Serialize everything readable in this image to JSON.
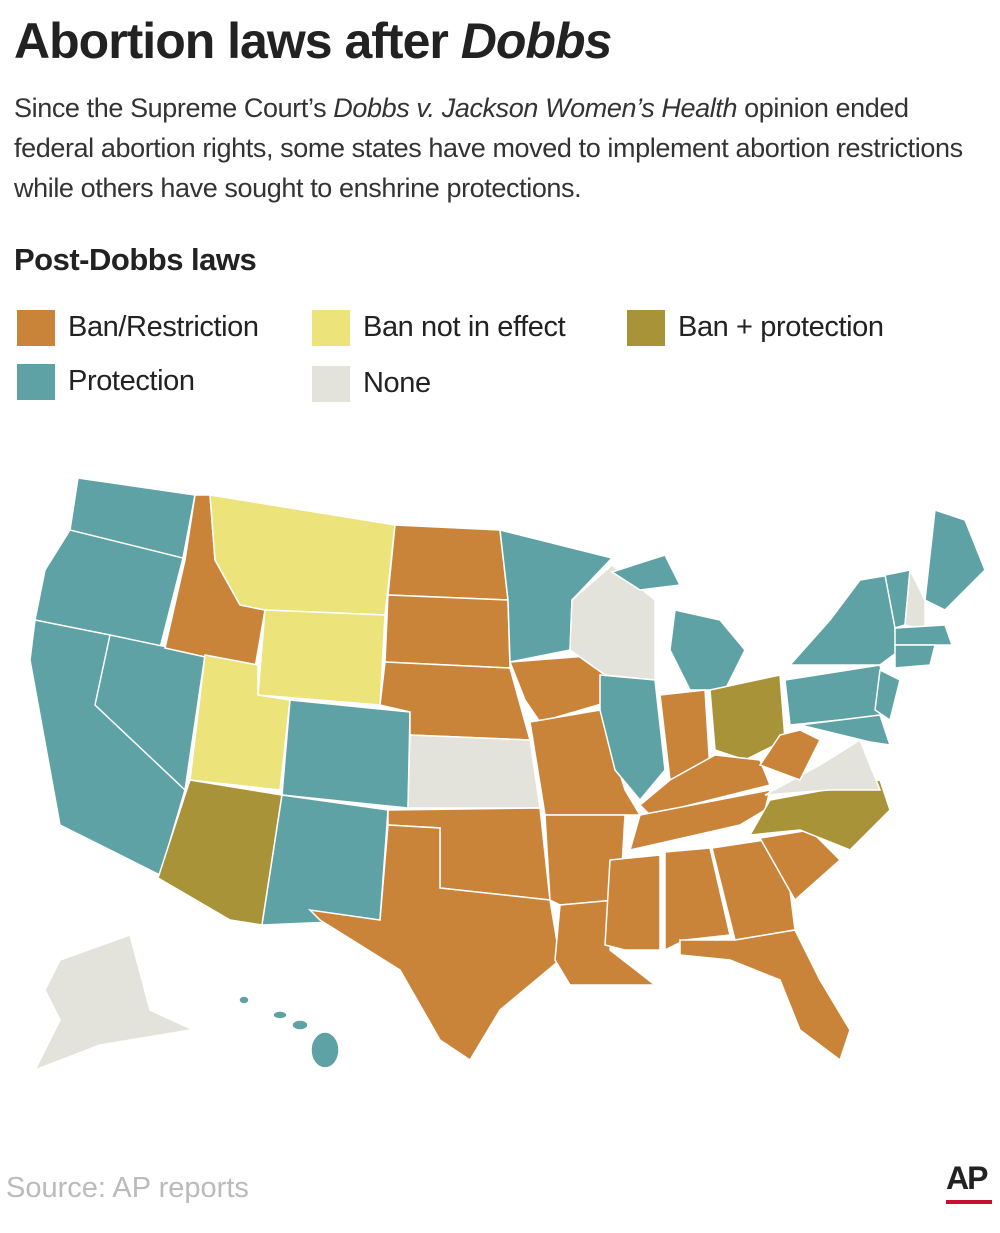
{
  "header": {
    "title": "Abortion laws after",
    "title_emphasis": "Dobbs",
    "subtitle_start": "Since the Supreme Court’s",
    "subtitle_emphasis": "Dobbs v. Jackson Women’s Health",
    "subtitle_end": "opinion ended federal abortion rights, some states have moved to implement abortion restrictions while others have sought to enshrine protections."
  },
  "legend": {
    "title": "Post-Dobbs laws",
    "items": [
      {
        "label": "Ban/Restriction",
        "color": "#c9843a"
      },
      {
        "label": "Ban not in effect",
        "color": "#ece37a"
      },
      {
        "label": "Ban + protection",
        "color": "#a99338"
      },
      {
        "label": "Protection",
        "color": "#5ea2a5"
      },
      {
        "label": "None",
        "color": "#e3e3db"
      }
    ]
  },
  "footer": {
    "source": "Source: AP reports",
    "logo": "AP"
  }
}
